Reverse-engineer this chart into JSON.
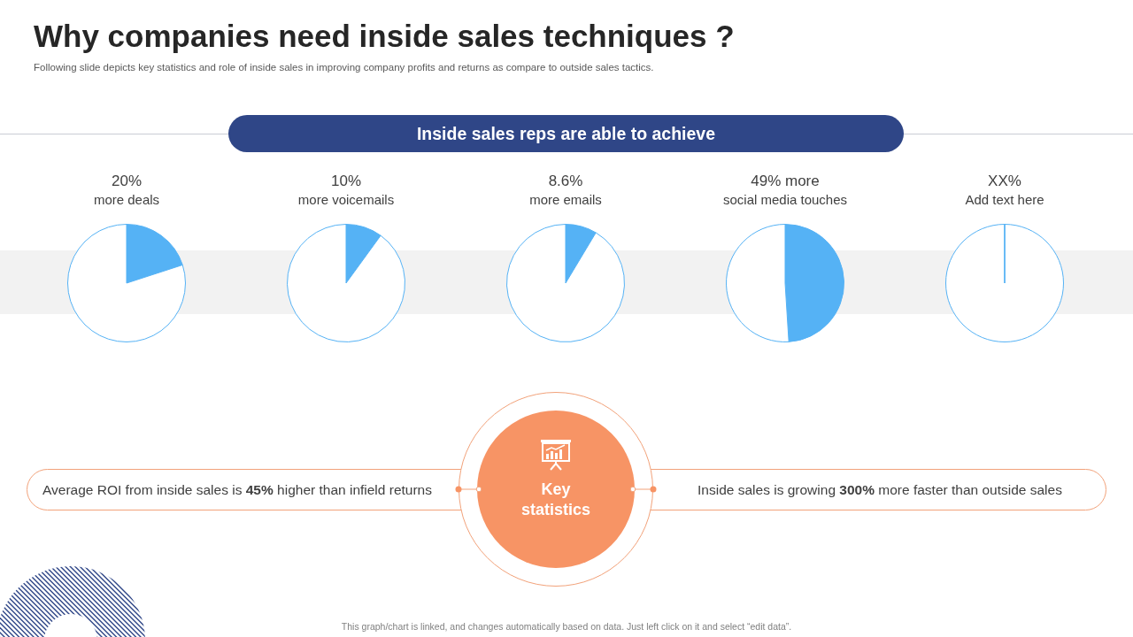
{
  "chart_data": [
    {
      "type": "other",
      "title": "Why companies need inside sales techniques ?",
      "subtitle": "Following slide depicts key statistics and role of inside sales in improving company profits and returns as compare to outside sales tactics.",
      "annotations": [
        "Inside sales reps are able to achieve"
      ]
    },
    {
      "type": "pie",
      "title": "20%",
      "subtitle": "more deals",
      "categories": [
        null,
        null
      ],
      "values": [
        20,
        80
      ],
      "colors": [
        "#55b2f5",
        "#ffffff"
      ]
    },
    {
      "type": "pie",
      "title": "10%",
      "subtitle": "more voicemails",
      "categories": [
        null,
        null
      ],
      "values": [
        10,
        90
      ],
      "colors": [
        "#55b2f5",
        "#ffffff"
      ]
    },
    {
      "type": "pie",
      "title": "8.6%",
      "subtitle": "more emails",
      "categories": [
        null,
        null
      ],
      "values": [
        8.6,
        91.4
      ],
      "colors": [
        "#55b2f5",
        "#ffffff"
      ]
    },
    {
      "type": "pie",
      "title": "49% more",
      "subtitle": "social media touches",
      "categories": [
        null,
        null
      ],
      "values": [
        49,
        51
      ],
      "colors": [
        "#55b2f5",
        "#ffffff"
      ]
    },
    {
      "type": "pie",
      "title": "XX%",
      "subtitle": "Add text here",
      "categories": [
        null,
        null
      ],
      "values": [
        0,
        100
      ],
      "colors": [
        "#55b2f5",
        "#ffffff"
      ]
    },
    {
      "type": "other",
      "title": "Key statistics",
      "annotations": [
        "Average ROI from inside sales is 45% higher than infield returns",
        "Inside sales is growing 300% more faster than outside sales",
        "This graph/chart is linked, and changes automatically based on data. Just left click on it and select “edit data”."
      ]
    }
  ]
}
